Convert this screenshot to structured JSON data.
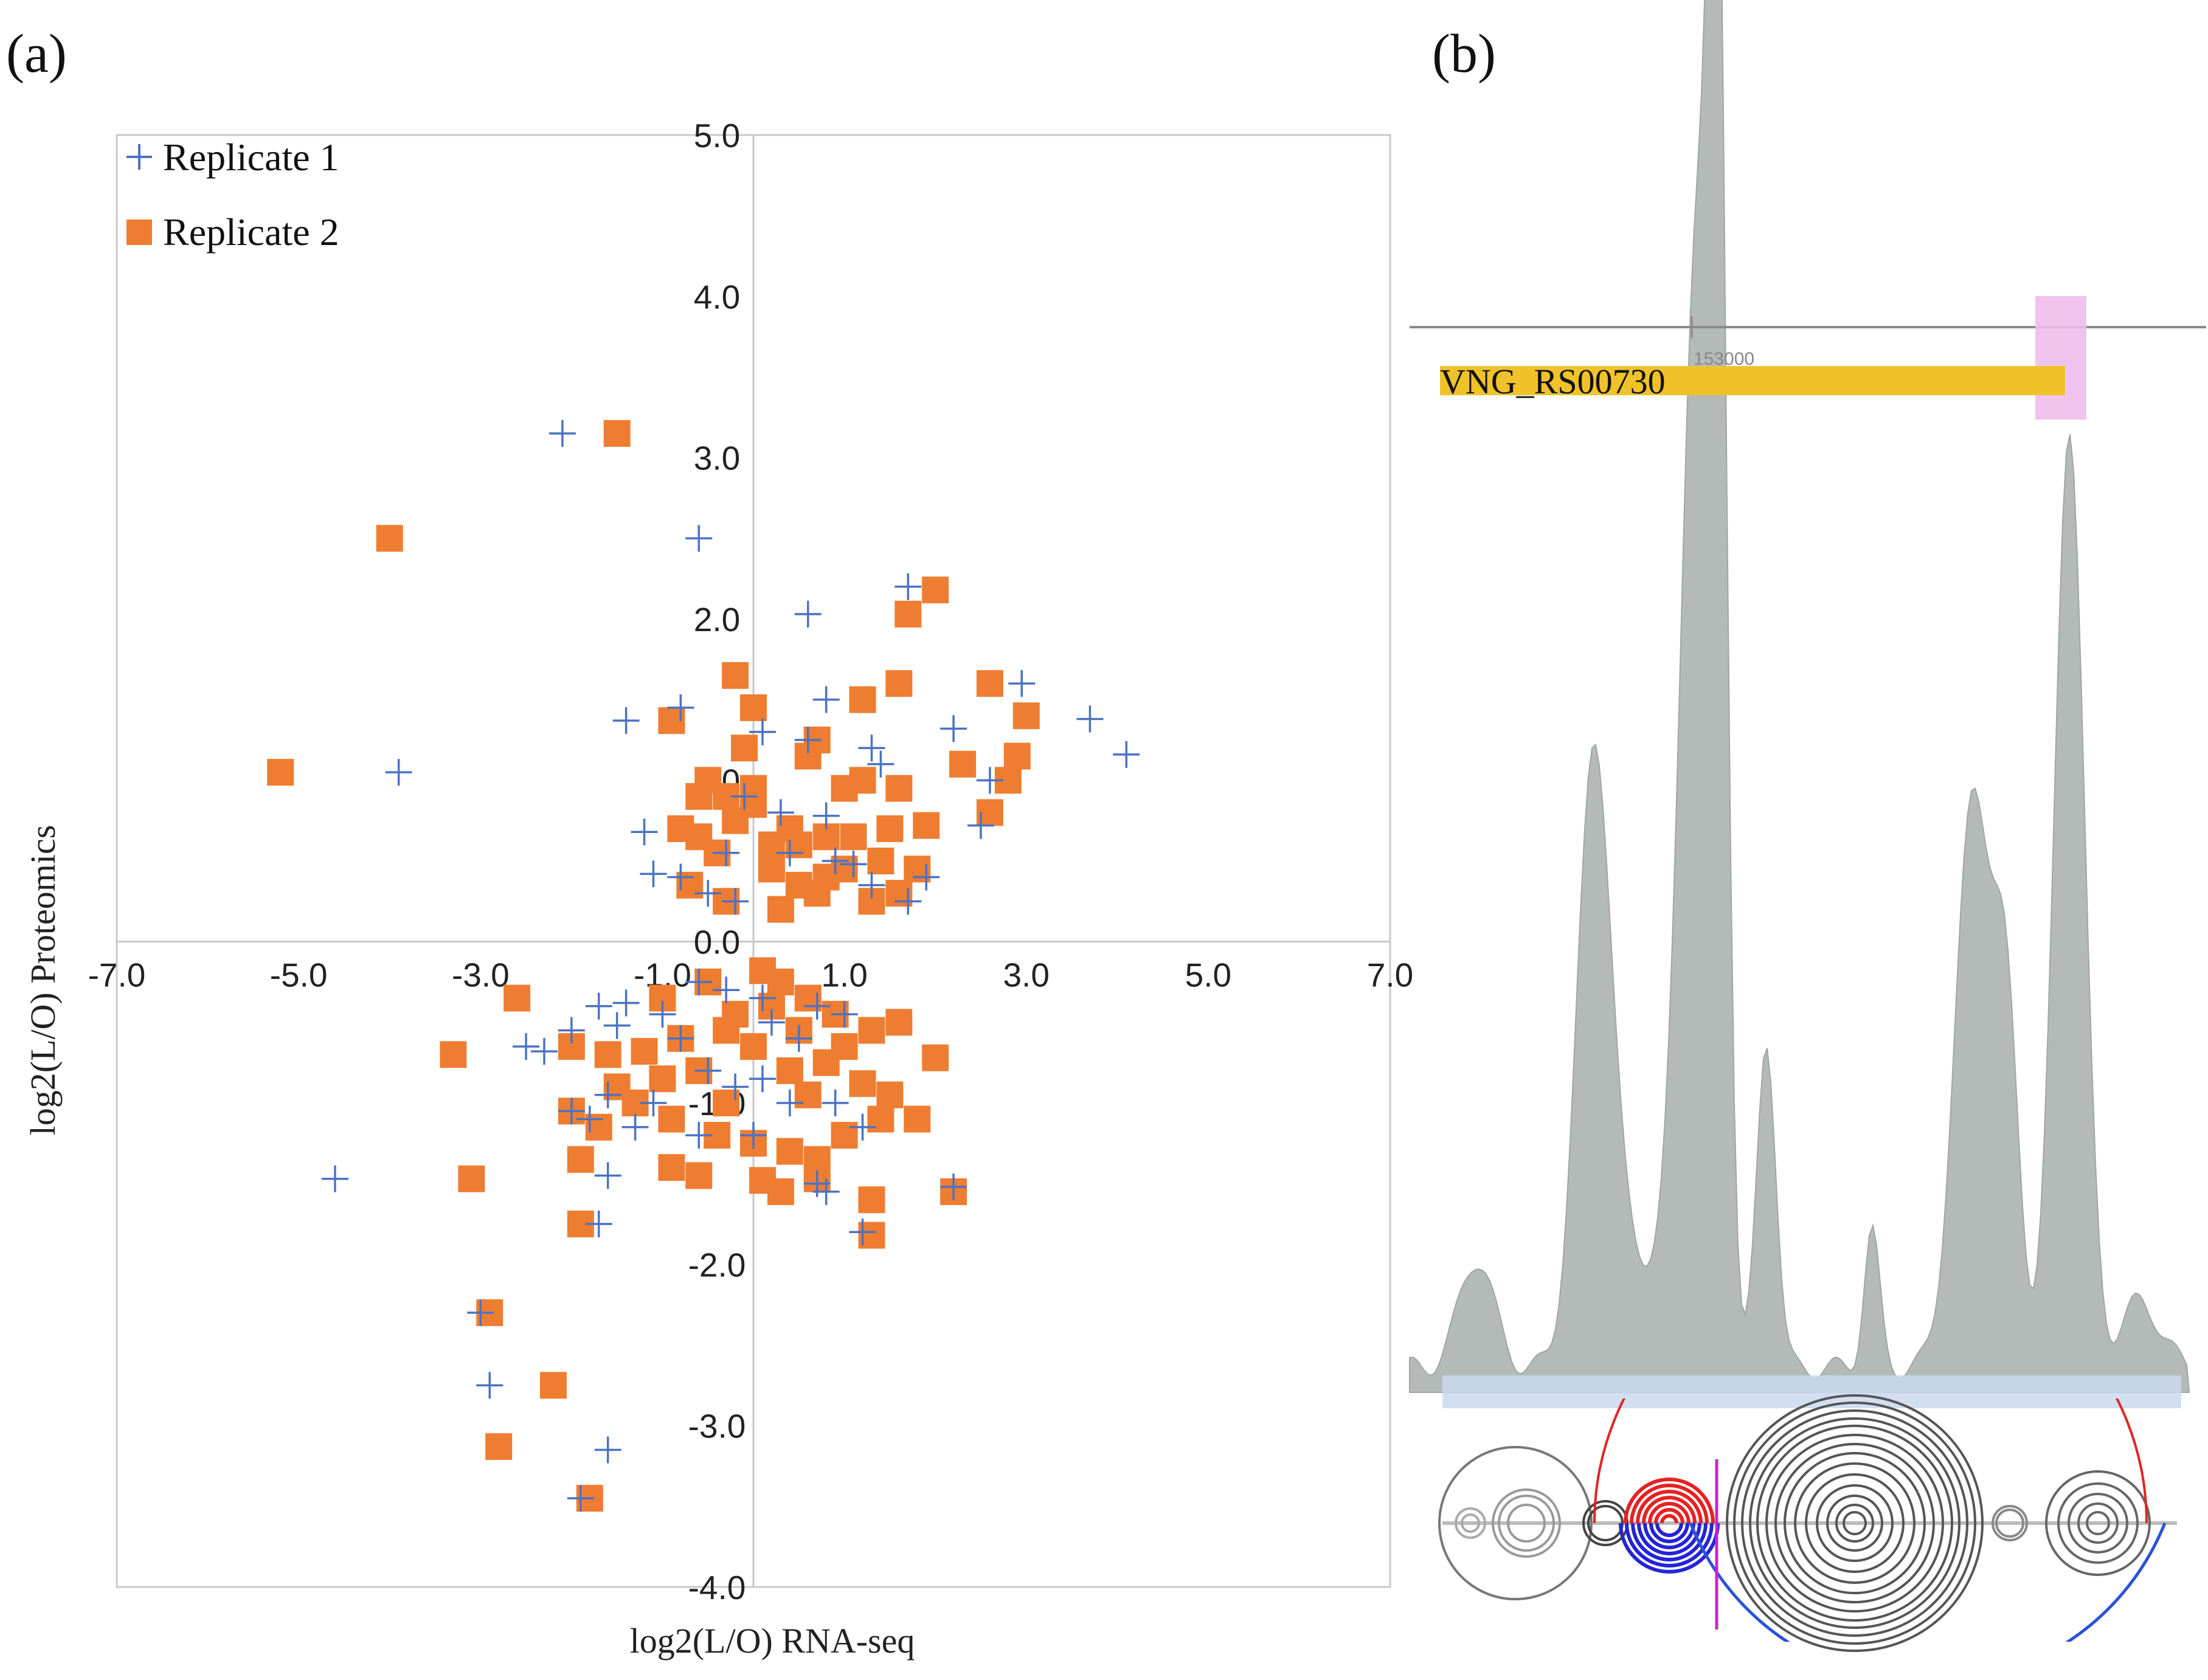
{
  "panel_a": {
    "label": "(a)"
  },
  "panel_b": {
    "label": "(b)",
    "gene_label": "VNG_RS00730",
    "coord_label": "153000"
  },
  "colors": {
    "rep1": "#4a72c4",
    "rep2": "#ef7d31",
    "coverage": "#b4bab7",
    "gene": "#f0c22a",
    "highlight": "#eebcec",
    "baseline": "#c9d9ee"
  },
  "chart_data": {
    "type": "scatter",
    "title": "",
    "xlabel": "log2(L/O) RNA-seq",
    "ylabel": "log2(L/O) Proteomics",
    "xlim": [
      -7.0,
      7.0
    ],
    "ylim": [
      -4.0,
      5.0
    ],
    "x_ticks": [
      "-7.0",
      "-5.0",
      "-3.0",
      "-1.0",
      "1.0",
      "3.0",
      "5.0",
      "7.0"
    ],
    "y_ticks": [
      "-4.0",
      "-3.0",
      "-2.0",
      "-1.0",
      "0.0",
      "1.0",
      "2.0",
      "3.0",
      "4.0",
      "5.0"
    ],
    "legend_position": "top-left",
    "series": [
      {
        "name": "Replicate 1",
        "marker": "plus",
        "points": [
          [
            -2.1,
            3.15
          ],
          [
            -0.6,
            2.5
          ],
          [
            0.6,
            2.03
          ],
          [
            1.7,
            2.2
          ],
          [
            2.95,
            1.6
          ],
          [
            3.7,
            1.38
          ],
          [
            4.1,
            1.16
          ],
          [
            -3.9,
            1.05
          ],
          [
            -1.4,
            1.37
          ],
          [
            -0.8,
            1.45
          ],
          [
            0.8,
            1.5
          ],
          [
            1.3,
            1.2
          ],
          [
            1.4,
            1.1
          ],
          [
            2.2,
            1.32
          ],
          [
            2.6,
            1.0
          ],
          [
            2.5,
            0.72
          ],
          [
            -1.2,
            0.68
          ],
          [
            -1.1,
            0.42
          ],
          [
            -0.3,
            0.55
          ],
          [
            -0.5,
            0.3
          ],
          [
            -0.2,
            0.25
          ],
          [
            0.3,
            0.8
          ],
          [
            0.4,
            0.55
          ],
          [
            0.8,
            0.78
          ],
          [
            0.9,
            0.5
          ],
          [
            1.1,
            0.48
          ],
          [
            1.3,
            0.35
          ],
          [
            1.7,
            0.25
          ],
          [
            1.9,
            0.4
          ],
          [
            -0.1,
            0.9
          ],
          [
            0.1,
            1.3
          ],
          [
            0.6,
            1.25
          ],
          [
            -0.8,
            0.4
          ],
          [
            -0.6,
            -0.25
          ],
          [
            -0.3,
            -0.3
          ],
          [
            0.1,
            -0.35
          ],
          [
            0.2,
            -0.5
          ],
          [
            0.5,
            -0.6
          ],
          [
            0.7,
            -0.4
          ],
          [
            1.0,
            -0.45
          ],
          [
            -1.0,
            -0.45
          ],
          [
            -1.4,
            -0.38
          ],
          [
            -1.7,
            -0.4
          ],
          [
            -2.0,
            -0.55
          ],
          [
            -2.3,
            -0.68
          ],
          [
            -2.5,
            -0.65
          ],
          [
            -1.5,
            -0.52
          ],
          [
            -0.8,
            -0.6
          ],
          [
            -0.5,
            -0.8
          ],
          [
            -0.2,
            -0.9
          ],
          [
            0.1,
            -0.85
          ],
          [
            0.4,
            -1.0
          ],
          [
            0.9,
            -1.0
          ],
          [
            1.2,
            -1.15
          ],
          [
            -1.1,
            -1.0
          ],
          [
            -1.3,
            -1.15
          ],
          [
            -1.6,
            -0.95
          ],
          [
            -1.8,
            -1.1
          ],
          [
            -2.0,
            -1.05
          ],
          [
            -1.6,
            -1.45
          ],
          [
            -1.7,
            -1.75
          ],
          [
            -0.6,
            -1.2
          ],
          [
            0.0,
            -1.2
          ],
          [
            0.8,
            -1.55
          ],
          [
            0.7,
            -1.5
          ],
          [
            1.2,
            -1.8
          ],
          [
            2.2,
            -1.52
          ],
          [
            -4.6,
            -1.47
          ],
          [
            -3.0,
            -2.3
          ],
          [
            -2.9,
            -2.75
          ],
          [
            -1.6,
            -3.15
          ],
          [
            -1.9,
            -3.45
          ]
        ]
      },
      {
        "name": "Replicate 2",
        "marker": "square",
        "points": [
          [
            -1.5,
            3.15
          ],
          [
            -4.0,
            2.5
          ],
          [
            2.0,
            2.18
          ],
          [
            1.7,
            2.03
          ],
          [
            2.6,
            1.6
          ],
          [
            3.0,
            1.4
          ],
          [
            2.9,
            1.15
          ],
          [
            -5.2,
            1.05
          ],
          [
            -0.9,
            1.37
          ],
          [
            -0.2,
            1.65
          ],
          [
            0.0,
            1.45
          ],
          [
            0.7,
            1.25
          ],
          [
            1.2,
            1.5
          ],
          [
            1.6,
            1.6
          ],
          [
            2.3,
            1.1
          ],
          [
            2.6,
            0.8
          ],
          [
            2.8,
            1.0
          ],
          [
            -0.8,
            0.7
          ],
          [
            -0.4,
            0.55
          ],
          [
            -0.7,
            0.35
          ],
          [
            -0.3,
            0.25
          ],
          [
            0.0,
            0.85
          ],
          [
            0.2,
            0.45
          ],
          [
            0.4,
            0.7
          ],
          [
            0.8,
            0.65
          ],
          [
            1.0,
            0.45
          ],
          [
            1.4,
            0.5
          ],
          [
            1.6,
            0.3
          ],
          [
            1.8,
            0.45
          ],
          [
            -0.5,
            1.0
          ],
          [
            0.0,
            0.95
          ],
          [
            0.5,
            0.35
          ],
          [
            1.0,
            0.95
          ],
          [
            1.6,
            0.95
          ],
          [
            1.9,
            0.72
          ],
          [
            -0.6,
            0.65
          ],
          [
            -0.2,
            0.75
          ],
          [
            0.3,
            0.2
          ],
          [
            0.7,
            0.3
          ],
          [
            1.3,
            0.25
          ],
          [
            -0.3,
            0.9
          ],
          [
            0.6,
            1.15
          ],
          [
            -0.1,
            1.2
          ],
          [
            0.2,
            0.6
          ],
          [
            1.5,
            0.7
          ],
          [
            1.2,
            1.0
          ],
          [
            0.8,
            0.4
          ],
          [
            1.1,
            0.65
          ],
          [
            0.5,
            0.6
          ],
          [
            -0.6,
            0.9
          ],
          [
            -1.0,
            -0.35
          ],
          [
            -0.5,
            -0.25
          ],
          [
            0.1,
            -0.18
          ],
          [
            0.3,
            -0.25
          ],
          [
            0.6,
            -0.35
          ],
          [
            0.9,
            -0.45
          ],
          [
            1.3,
            -0.55
          ],
          [
            1.6,
            -0.5
          ],
          [
            2.0,
            -0.72
          ],
          [
            -0.8,
            -0.6
          ],
          [
            -1.2,
            -0.68
          ],
          [
            -1.6,
            -0.7
          ],
          [
            -2.0,
            -0.65
          ],
          [
            -0.3,
            -0.55
          ],
          [
            0.0,
            -0.65
          ],
          [
            0.4,
            -0.8
          ],
          [
            0.8,
            -0.75
          ],
          [
            1.2,
            -0.88
          ],
          [
            1.5,
            -0.95
          ],
          [
            -1.0,
            -0.85
          ],
          [
            -1.5,
            -0.9
          ],
          [
            -2.0,
            -1.05
          ],
          [
            -1.7,
            -1.15
          ],
          [
            -1.3,
            -1.0
          ],
          [
            -0.9,
            -1.1
          ],
          [
            -0.4,
            -1.2
          ],
          [
            0.0,
            -1.25
          ],
          [
            0.4,
            -1.3
          ],
          [
            0.7,
            -1.35
          ],
          [
            1.0,
            -1.2
          ],
          [
            1.4,
            -1.1
          ],
          [
            1.8,
            -1.1
          ],
          [
            -1.9,
            -1.35
          ],
          [
            -0.9,
            -1.4
          ],
          [
            -0.6,
            -1.45
          ],
          [
            0.1,
            -1.48
          ],
          [
            0.3,
            -1.55
          ],
          [
            0.7,
            -1.47
          ],
          [
            1.3,
            -1.6
          ],
          [
            -0.3,
            -1.0
          ],
          [
            0.6,
            -0.95
          ],
          [
            -3.3,
            -0.7
          ],
          [
            -2.6,
            -0.35
          ],
          [
            -3.1,
            -1.47
          ],
          [
            -1.9,
            -1.75
          ],
          [
            1.3,
            -1.82
          ],
          [
            2.2,
            -1.55
          ],
          [
            -2.9,
            -2.3
          ],
          [
            -2.2,
            -2.75
          ],
          [
            -2.8,
            -3.13
          ],
          [
            -1.8,
            -3.45
          ],
          [
            0.2,
            -0.4
          ],
          [
            -0.2,
            -0.45
          ],
          [
            0.5,
            -0.55
          ],
          [
            1.0,
            -0.65
          ],
          [
            -0.6,
            -0.8
          ]
        ]
      }
    ]
  }
}
